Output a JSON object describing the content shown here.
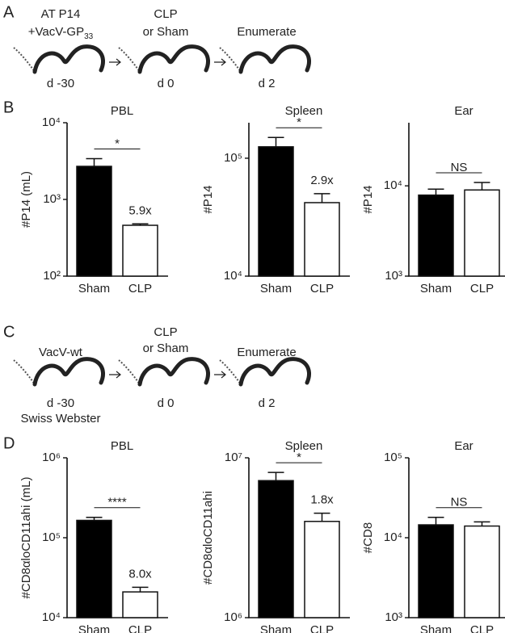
{
  "panel_labels": [
    "A",
    "B",
    "C",
    "D"
  ],
  "timelines": [
    {
      "steps": [
        {
          "above": [
            "AT P14",
            {
              "text": "+VacV-GP",
              "sub": "33"
            }
          ],
          "below": [
            "d -30"
          ]
        },
        {
          "above": [
            "CLP",
            "or Sham"
          ],
          "below": [
            "d 0"
          ]
        },
        {
          "above": [
            "Enumerate"
          ],
          "below": [
            "d 2"
          ]
        }
      ]
    },
    {
      "steps": [
        {
          "above": [
            "VacV-wt"
          ],
          "below": [
            "d -30",
            "Swiss Webster"
          ]
        },
        {
          "above": [
            "CLP",
            "or Sham"
          ],
          "below": [
            "d 0"
          ]
        },
        {
          "above": [
            "Enumerate"
          ],
          "below": [
            "d 2"
          ]
        }
      ]
    }
  ],
  "chart_data": [
    {
      "type": "bar",
      "title": "PBL",
      "ylabel": "#P14 (mL)",
      "categories": [
        "Sham",
        "CLP"
      ],
      "values": [
        2700,
        460
      ],
      "errors": [
        700,
        20
      ],
      "colors": [
        "#000000",
        "#ffffff"
      ],
      "yscale": "log",
      "ylim": [
        100,
        10000
      ],
      "yticks": [
        {
          "value": 100,
          "label": "10²"
        },
        {
          "value": 1000,
          "label": "10³"
        },
        {
          "value": 10000,
          "label": "10⁴"
        }
      ],
      "fold_label": "5.9x",
      "significance": "*"
    },
    {
      "type": "bar",
      "title": "Spleen",
      "ylabel": "#P14",
      "categories": [
        "Sham",
        "CLP"
      ],
      "values": [
        125000,
        42000
      ],
      "errors": [
        25000,
        8000
      ],
      "colors": [
        "#000000",
        "#ffffff"
      ],
      "yscale": "log",
      "ylim": [
        10000,
        200000
      ],
      "yticks": [
        {
          "value": 10000,
          "label": "10⁴"
        },
        {
          "value": 100000,
          "label": "10⁵"
        }
      ],
      "fold_label": "2.9x",
      "significance": "*"
    },
    {
      "type": "bar",
      "title": "Ear",
      "ylabel": "#P14",
      "categories": [
        "Sham",
        "CLP"
      ],
      "values": [
        7900,
        9000
      ],
      "errors": [
        1300,
        1900
      ],
      "colors": [
        "#000000",
        "#ffffff"
      ],
      "yscale": "log",
      "ylim": [
        1000,
        50000
      ],
      "yticks": [
        {
          "value": 1000,
          "label": "10³"
        },
        {
          "value": 10000,
          "label": "10⁴"
        }
      ],
      "significance": "NS"
    },
    {
      "type": "bar",
      "title": "PBL",
      "ylabel": "#CD8αloCD11ahi (mL)",
      "categories": [
        "Sham",
        "CLP"
      ],
      "values": [
        165000,
        21000
      ],
      "errors": [
        15000,
        3000
      ],
      "colors": [
        "#000000",
        "#ffffff"
      ],
      "yscale": "log",
      "ylim": [
        10000,
        1000000
      ],
      "yticks": [
        {
          "value": 10000,
          "label": "10⁴"
        },
        {
          "value": 100000,
          "label": "10⁵"
        },
        {
          "value": 1000000,
          "label": "10⁶"
        }
      ],
      "fold_label": "8.0x",
      "significance": "****"
    },
    {
      "type": "bar",
      "title": "Spleen",
      "ylabel": "#CD8αloCD11ahi",
      "categories": [
        "Sham",
        "CLP"
      ],
      "values": [
        7200000,
        4000000
      ],
      "errors": [
        900000,
        500000
      ],
      "colors": [
        "#000000",
        "#ffffff"
      ],
      "yscale": "log",
      "ylim": [
        1000000,
        10000000
      ],
      "yticks": [
        {
          "value": 1000000,
          "label": "10⁶"
        },
        {
          "value": 10000000,
          "label": "10⁷"
        }
      ],
      "fold_label": "1.8x",
      "significance": "*"
    },
    {
      "type": "bar",
      "title": "Ear",
      "ylabel": "#CD8",
      "categories": [
        "Sham",
        "CLP"
      ],
      "values": [
        14500,
        14000
      ],
      "errors": [
        3500,
        1800
      ],
      "colors": [
        "#000000",
        "#ffffff"
      ],
      "yscale": "log",
      "ylim": [
        1000,
        100000
      ],
      "yticks": [
        {
          "value": 1000,
          "label": "10³"
        },
        {
          "value": 10000,
          "label": "10⁴"
        },
        {
          "value": 100000,
          "label": "10⁵"
        }
      ],
      "significance": "NS"
    }
  ]
}
